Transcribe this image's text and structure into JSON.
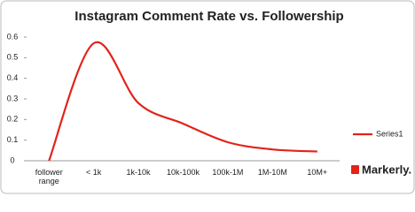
{
  "chart_data": {
    "type": "line",
    "title": "Instagram Comment Rate vs. Followership",
    "categories": [
      "follower range",
      "< 1k",
      "1k-10k",
      "10k-100k",
      "100k-1M",
      "1M-10M",
      "10M+"
    ],
    "series": [
      {
        "name": "Series1",
        "color": "#e2231a",
        "values": [
          0,
          0.57,
          0.28,
          0.18,
          0.09,
          0.055,
          0.045
        ]
      }
    ],
    "ylim": [
      0,
      0.6
    ],
    "yticks": [
      0,
      0.1,
      0.2,
      0.3,
      0.4,
      0.5,
      0.6
    ],
    "smooth": true,
    "legend": "right",
    "watermark": "Markerly."
  }
}
